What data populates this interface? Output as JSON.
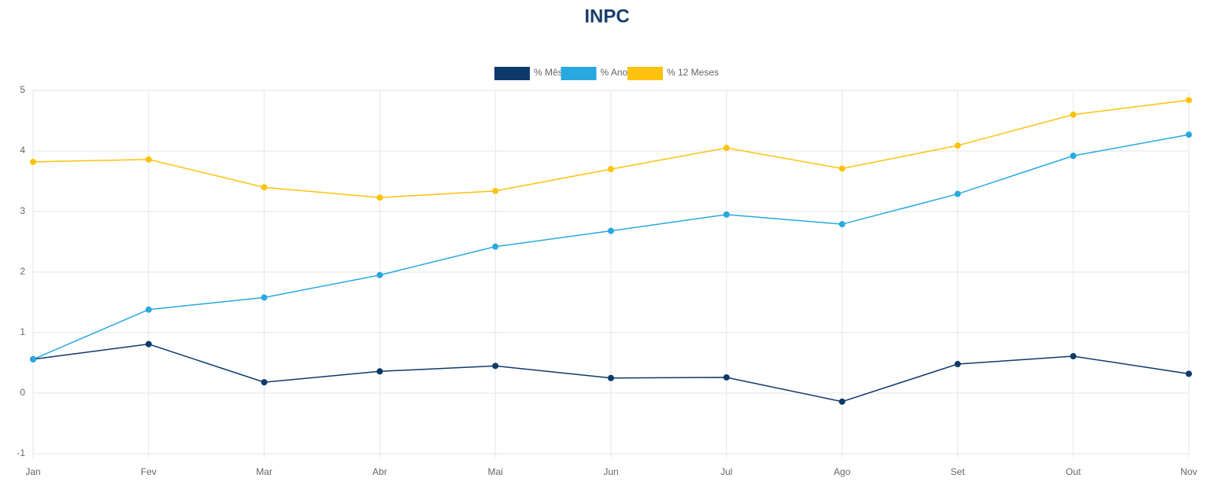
{
  "chart_data": {
    "type": "line",
    "title": "INPC",
    "categories": [
      "Jan",
      "Fev",
      "Mar",
      "Abr",
      "Mai",
      "Jun",
      "Jul",
      "Ago",
      "Set",
      "Out",
      "Nov"
    ],
    "series": [
      {
        "name": "% Mês",
        "color": "#0e3a6a",
        "values": [
          0.56,
          0.81,
          0.18,
          0.36,
          0.45,
          0.25,
          0.26,
          -0.14,
          0.48,
          0.61,
          0.32
        ]
      },
      {
        "name": "% Ano",
        "color": "#29a8e0",
        "values": [
          0.56,
          1.38,
          1.58,
          1.95,
          2.42,
          2.68,
          2.95,
          2.79,
          3.29,
          3.92,
          4.27
        ]
      },
      {
        "name": "% 12 Meses",
        "color": "#ffc20e",
        "values": [
          3.82,
          3.86,
          3.4,
          3.23,
          3.34,
          3.7,
          4.05,
          3.71,
          4.09,
          4.6,
          4.84
        ]
      }
    ],
    "ylim": [
      -1,
      5
    ],
    "yticks": [
      -1,
      0,
      1,
      2,
      3,
      4,
      5
    ],
    "grid": true,
    "legend": "top"
  }
}
